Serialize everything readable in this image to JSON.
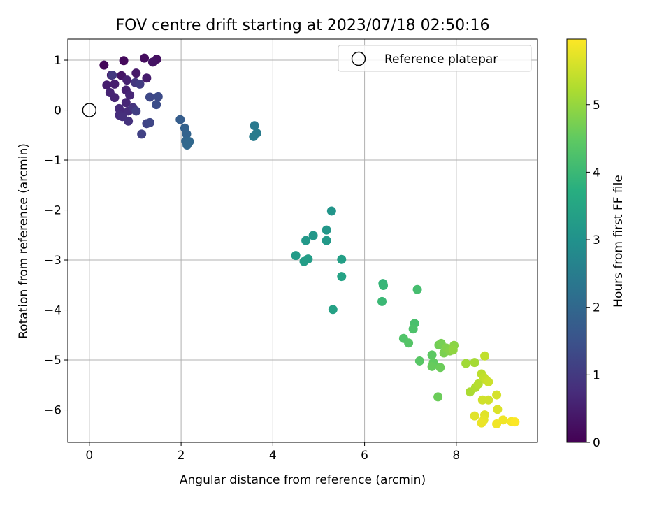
{
  "chart_data": {
    "type": "scatter",
    "title": "FOV centre drift starting at 2023/07/18 02:50:16",
    "xlabel": "Angular distance from reference (arcmin)",
    "ylabel": "Rotation from reference (arcmin)",
    "xlim": [
      -0.47,
      9.77
    ],
    "ylim": [
      -6.65,
      1.42
    ],
    "xticks": [
      0,
      2,
      4,
      6,
      8
    ],
    "yticks": [
      1,
      0,
      -1,
      -2,
      -3,
      -4,
      -5,
      -6
    ],
    "xtick_labels": [
      "0",
      "2",
      "4",
      "6",
      "8"
    ],
    "ytick_labels": [
      "1",
      "0",
      "−1",
      "−2",
      "−3",
      "−4",
      "−5",
      "−6"
    ],
    "grid": true,
    "legend": {
      "placement": "top-right",
      "entries": [
        "Reference platepar"
      ]
    },
    "reference_point": {
      "x": 0,
      "y": 0
    },
    "colorbar": {
      "label": "Hours from first FF file",
      "colormap": "viridis",
      "range": [
        0,
        5.97
      ],
      "ticks": [
        0,
        1,
        2,
        3,
        4,
        5
      ],
      "tick_labels": [
        "0",
        "1",
        "2",
        "3",
        "4",
        "5"
      ]
    },
    "points": [
      {
        "x": 0.32,
        "y": 0.9,
        "h": 0.1
      },
      {
        "x": 0.75,
        "y": 0.99,
        "h": 0.15
      },
      {
        "x": 1.2,
        "y": 1.04,
        "h": 0.2
      },
      {
        "x": 1.47,
        "y": 1.02,
        "h": 0.25
      },
      {
        "x": 1.38,
        "y": 0.96,
        "h": 0.3
      },
      {
        "x": 0.48,
        "y": 0.7,
        "h": 0.35
      },
      {
        "x": 0.7,
        "y": 0.69,
        "h": 0.35
      },
      {
        "x": 1.02,
        "y": 0.74,
        "h": 0.4
      },
      {
        "x": 1.25,
        "y": 0.64,
        "h": 0.45
      },
      {
        "x": 0.38,
        "y": 0.5,
        "h": 0.5
      },
      {
        "x": 0.55,
        "y": 0.52,
        "h": 0.5
      },
      {
        "x": 0.82,
        "y": 0.6,
        "h": 0.55
      },
      {
        "x": 0.8,
        "y": 0.4,
        "h": 0.55
      },
      {
        "x": 0.45,
        "y": 0.35,
        "h": 0.6
      },
      {
        "x": 0.55,
        "y": 0.25,
        "h": 0.6
      },
      {
        "x": 0.88,
        "y": 0.3,
        "h": 0.65
      },
      {
        "x": 0.8,
        "y": 0.15,
        "h": 0.65
      },
      {
        "x": 0.65,
        "y": 0.03,
        "h": 0.7
      },
      {
        "x": 0.7,
        "y": -0.05,
        "h": 0.7
      },
      {
        "x": 0.85,
        "y": -0.02,
        "h": 0.75
      },
      {
        "x": 0.65,
        "y": -0.1,
        "h": 0.75
      },
      {
        "x": 0.72,
        "y": -0.13,
        "h": 0.8
      },
      {
        "x": 0.85,
        "y": -0.22,
        "h": 0.85
      },
      {
        "x": 0.95,
        "y": 0.05,
        "h": 0.9
      },
      {
        "x": 1.0,
        "y": 0.55,
        "h": 0.95
      },
      {
        "x": 0.5,
        "y": 0.7,
        "h": 1.0
      },
      {
        "x": 1.1,
        "y": 0.52,
        "h": 1.05
      },
      {
        "x": 1.02,
        "y": -0.02,
        "h": 1.1
      },
      {
        "x": 1.14,
        "y": -0.48,
        "h": 1.15
      },
      {
        "x": 1.25,
        "y": -0.27,
        "h": 1.2
      },
      {
        "x": 1.32,
        "y": -0.25,
        "h": 1.25
      },
      {
        "x": 1.32,
        "y": 0.26,
        "h": 1.3
      },
      {
        "x": 1.5,
        "y": 0.27,
        "h": 1.35
      },
      {
        "x": 1.46,
        "y": 0.11,
        "h": 1.4
      },
      {
        "x": 1.98,
        "y": -0.19,
        "h": 1.75
      },
      {
        "x": 2.08,
        "y": -0.36,
        "h": 1.85
      },
      {
        "x": 2.12,
        "y": -0.48,
        "h": 1.9
      },
      {
        "x": 2.1,
        "y": -0.62,
        "h": 1.95
      },
      {
        "x": 2.18,
        "y": -0.63,
        "h": 2.0
      },
      {
        "x": 2.13,
        "y": -0.7,
        "h": 2.0
      },
      {
        "x": 3.6,
        "y": -0.31,
        "h": 2.4
      },
      {
        "x": 3.65,
        "y": -0.46,
        "h": 2.45
      },
      {
        "x": 3.58,
        "y": -0.53,
        "h": 2.45
      },
      {
        "x": 5.28,
        "y": -2.02,
        "h": 3.1
      },
      {
        "x": 5.17,
        "y": -2.4,
        "h": 3.15
      },
      {
        "x": 4.88,
        "y": -2.51,
        "h": 3.15
      },
      {
        "x": 4.72,
        "y": -2.61,
        "h": 3.2
      },
      {
        "x": 5.17,
        "y": -2.61,
        "h": 3.2
      },
      {
        "x": 4.5,
        "y": -2.91,
        "h": 3.25
      },
      {
        "x": 4.77,
        "y": -2.98,
        "h": 3.3
      },
      {
        "x": 4.68,
        "y": -3.03,
        "h": 3.3
      },
      {
        "x": 5.5,
        "y": -2.99,
        "h": 3.35
      },
      {
        "x": 5.5,
        "y": -3.33,
        "h": 3.45
      },
      {
        "x": 5.31,
        "y": -3.99,
        "h": 3.4
      },
      {
        "x": 6.4,
        "y": -3.47,
        "h": 3.9
      },
      {
        "x": 6.41,
        "y": -3.51,
        "h": 3.95
      },
      {
        "x": 6.38,
        "y": -3.83,
        "h": 4.0
      },
      {
        "x": 7.15,
        "y": -3.59,
        "h": 4.15
      },
      {
        "x": 7.09,
        "y": -4.27,
        "h": 4.2
      },
      {
        "x": 7.06,
        "y": -4.38,
        "h": 4.25
      },
      {
        "x": 6.85,
        "y": -4.57,
        "h": 4.3
      },
      {
        "x": 6.96,
        "y": -4.66,
        "h": 4.35
      },
      {
        "x": 7.2,
        "y": -5.02,
        "h": 4.4
      },
      {
        "x": 7.47,
        "y": -4.9,
        "h": 4.45
      },
      {
        "x": 7.5,
        "y": -5.05,
        "h": 4.5
      },
      {
        "x": 7.47,
        "y": -5.13,
        "h": 4.55
      },
      {
        "x": 7.65,
        "y": -5.15,
        "h": 4.6
      },
      {
        "x": 7.6,
        "y": -5.74,
        "h": 4.6
      },
      {
        "x": 7.62,
        "y": -4.7,
        "h": 4.65
      },
      {
        "x": 7.67,
        "y": -4.67,
        "h": 4.7
      },
      {
        "x": 7.73,
        "y": -4.86,
        "h": 4.75
      },
      {
        "x": 7.78,
        "y": -4.76,
        "h": 4.8
      },
      {
        "x": 7.86,
        "y": -4.82,
        "h": 4.85
      },
      {
        "x": 7.95,
        "y": -4.71,
        "h": 4.9
      },
      {
        "x": 7.93,
        "y": -4.8,
        "h": 4.95
      },
      {
        "x": 8.21,
        "y": -5.07,
        "h": 5.1
      },
      {
        "x": 8.4,
        "y": -5.05,
        "h": 5.15
      },
      {
        "x": 8.3,
        "y": -5.64,
        "h": 5.2
      },
      {
        "x": 8.42,
        "y": -5.55,
        "h": 5.25
      },
      {
        "x": 8.48,
        "y": -5.48,
        "h": 5.3
      },
      {
        "x": 8.55,
        "y": -5.28,
        "h": 5.35
      },
      {
        "x": 8.6,
        "y": -5.35,
        "h": 5.4
      },
      {
        "x": 8.62,
        "y": -4.92,
        "h": 5.4
      },
      {
        "x": 8.65,
        "y": -5.4,
        "h": 5.45
      },
      {
        "x": 8.7,
        "y": -5.44,
        "h": 5.5
      },
      {
        "x": 8.57,
        "y": -5.8,
        "h": 5.55
      },
      {
        "x": 8.7,
        "y": -5.8,
        "h": 5.55
      },
      {
        "x": 8.88,
        "y": -5.7,
        "h": 5.6
      },
      {
        "x": 8.9,
        "y": -5.99,
        "h": 5.65
      },
      {
        "x": 8.4,
        "y": -6.12,
        "h": 5.7
      },
      {
        "x": 8.62,
        "y": -6.1,
        "h": 5.7
      },
      {
        "x": 8.6,
        "y": -6.2,
        "h": 5.75
      },
      {
        "x": 8.55,
        "y": -6.26,
        "h": 5.8
      },
      {
        "x": 8.88,
        "y": -6.28,
        "h": 5.85
      },
      {
        "x": 9.02,
        "y": -6.2,
        "h": 5.85
      },
      {
        "x": 9.2,
        "y": -6.23,
        "h": 5.9
      },
      {
        "x": 9.28,
        "y": -6.24,
        "h": 5.95
      }
    ]
  }
}
